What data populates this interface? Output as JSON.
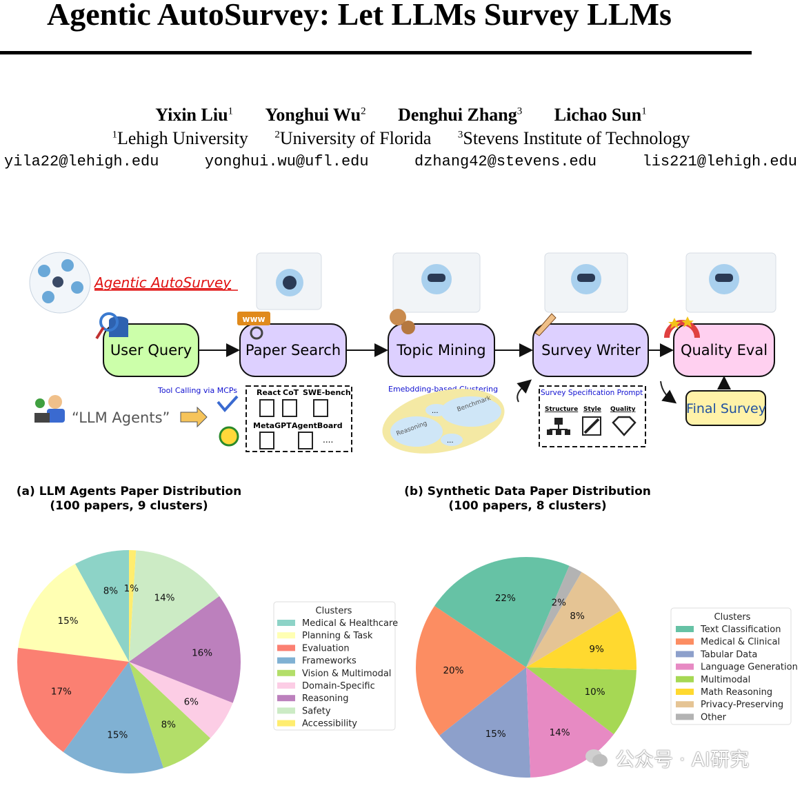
{
  "title": "Agentic AutoSurvey: Let LLMs Survey LLMs",
  "authors": [
    {
      "name": "Yixin Liu",
      "sup": "1"
    },
    {
      "name": "Yonghui Wu",
      "sup": "2"
    },
    {
      "name": "Denghui Zhang",
      "sup": "3"
    },
    {
      "name": "Lichao Sun",
      "sup": "1"
    }
  ],
  "affiliations": [
    {
      "sup": "1",
      "name": "Lehigh University"
    },
    {
      "sup": "2",
      "name": "University of Florida"
    },
    {
      "sup": "3",
      "name": "Stevens Institute of Technology"
    }
  ],
  "emails": [
    "yila22@lehigh.edu",
    "yonghui.wu@ufl.edu",
    "dzhang42@stevens.edu",
    "lis221@lehigh.edu"
  ],
  "pipeline": {
    "system_name": "Agentic AutoSurvey",
    "stages": [
      "User Query",
      "Paper Search",
      "Topic Mining",
      "Survey Writer",
      "Quality Eval"
    ],
    "output": "Final Survey",
    "user_query_text": "“LLM Agents”",
    "www_label": "www",
    "tool_calling_label": "Tool Calling via MCPs",
    "tools": [
      "React",
      "CoT",
      "SWE-bench",
      "MetaGPT",
      "AgentBoard",
      "...."
    ],
    "clustering_label": "Emebdding-based Clustering",
    "cluster_tags": [
      "Reasoning",
      "Benchmark",
      "...",
      "..."
    ],
    "spec_prompt_label": "Survey Specification Prompt",
    "spec_items": [
      "Structure",
      "Style",
      "Quality"
    ],
    "colors": {
      "user_query": "#ccffaa",
      "agent_box": "#ddd0ff",
      "quality_eval": "#ffd0f0",
      "final_survey": "#fff2a8",
      "brand_red": "#e01010",
      "tool_label_blue": "#1010d0"
    }
  },
  "chart_data": [
    {
      "type": "pie",
      "title": "(a) LLM Agents Paper Distribution",
      "subtitle": "(100 papers, 9 clusters)",
      "legend_title": "Clusters",
      "legend_position": "right",
      "categories": [
        "Medical & Healthcare",
        "Planning & Task",
        "Evaluation",
        "Frameworks",
        "Vision & Multimodal",
        "Domain-Specific",
        "Reasoning",
        "Safety",
        "Accessibility"
      ],
      "values": [
        8,
        15,
        17,
        15,
        8,
        6,
        16,
        14,
        1
      ],
      "labels": [
        "8%",
        "15%",
        "17%",
        "15%",
        "8%",
        "6%",
        "16%",
        "14%",
        "1%"
      ],
      "colors": [
        "#8dd3c7",
        "#ffffb3",
        "#fb8072",
        "#80b1d3",
        "#b3de69",
        "#fccde5",
        "#bc80bd",
        "#ccebc5",
        "#ffed6f"
      ]
    },
    {
      "type": "pie",
      "title": "(b) Synthetic Data Paper Distribution",
      "subtitle": "(100 papers, 8 clusters)",
      "legend_title": "Clusters",
      "legend_position": "right",
      "categories": [
        "Text Classification",
        "Medical & Clinical",
        "Tabular Data",
        "Language Generation",
        "Multimodal",
        "Math Reasoning",
        "Privacy-Preserving",
        "Other"
      ],
      "values": [
        22,
        20,
        15,
        14,
        10,
        9,
        8,
        2
      ],
      "labels": [
        "22%",
        "20%",
        "15%",
        "14%",
        "10%",
        "9%",
        "8%",
        "2%"
      ],
      "colors": [
        "#66c2a5",
        "#fc8d62",
        "#8da0cb",
        "#e78ac3",
        "#a6d854",
        "#ffd92f",
        "#e5c494",
        "#b3b3b3"
      ]
    }
  ],
  "watermark": "公众号 · AI研究"
}
